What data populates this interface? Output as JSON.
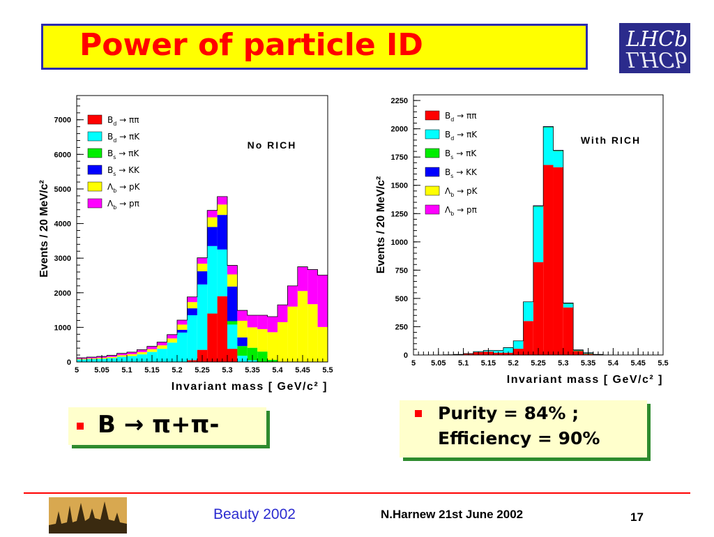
{
  "slide": {
    "title": "Power of particle ID",
    "logo_text": "LHCb",
    "box_left": {
      "text_left": "B ",
      "arrow": "→",
      "text_right": " π+π-"
    },
    "box_right": {
      "line1": "Purity = 84% ;",
      "line2": "Efficiency = 90%"
    },
    "footer": {
      "event": "Beauty 2002",
      "author_date": "N.Harnew  21st June 2002",
      "page": "17"
    }
  },
  "colors": {
    "title_bg": "#ffff00",
    "title_border": "#2b2bb0",
    "title_text": "#ff0000",
    "box_bg": "#ffffcc",
    "box_shadow": "#2e8b2e",
    "bullet": "#ff0000",
    "footer_line": "#ff0000",
    "footer_event": "#2b2bd0"
  },
  "chart_data": [
    {
      "type": "bar",
      "stacked": true,
      "annotation": "No RICH",
      "xlabel": "Invariant mass  [ GeV/c² ]",
      "ylabel": "Events / 20 MeV/c²",
      "xlim": [
        5,
        5.5
      ],
      "ylim": [
        0,
        7700
      ],
      "xticks": [
        "5",
        "5.05",
        "5.1",
        "5.15",
        "5.2",
        "5.25",
        "5.3",
        "5.35",
        "5.4",
        "5.45",
        "5.5"
      ],
      "yticks": [
        0,
        1000,
        2000,
        3000,
        4000,
        5000,
        6000,
        7000
      ],
      "legend_position": "top-left",
      "bin_width": 0.02,
      "bin_starts": [
        5.0,
        5.02,
        5.04,
        5.06,
        5.08,
        5.1,
        5.12,
        5.14,
        5.16,
        5.18,
        5.2,
        5.22,
        5.24,
        5.26,
        5.28,
        5.3,
        5.32,
        5.34,
        5.36,
        5.38,
        5.4,
        5.42,
        5.44,
        5.46,
        5.48
      ],
      "series": [
        {
          "name": "Bd → ππ",
          "color": "#ff0000",
          "values": [
            0,
            0,
            0,
            0,
            0,
            0,
            0,
            0,
            0,
            0,
            0,
            50,
            350,
            1400,
            1900,
            380,
            0,
            0,
            0,
            0,
            0,
            0,
            0,
            0,
            0
          ]
        },
        {
          "name": "Bd → πK",
          "color": "#00ffff",
          "values": [
            70,
            80,
            90,
            110,
            150,
            170,
            220,
            290,
            380,
            560,
            850,
            1300,
            1890,
            1950,
            1350,
            700,
            180,
            50,
            0,
            0,
            0,
            0,
            0,
            0,
            0
          ]
        },
        {
          "name": "Bs → πK",
          "color": "#00ee00",
          "values": [
            0,
            0,
            0,
            0,
            0,
            0,
            0,
            0,
            0,
            0,
            0,
            0,
            0,
            0,
            0,
            100,
            280,
            360,
            300,
            60,
            0,
            0,
            0,
            0,
            0
          ]
        },
        {
          "name": "Bs → KK",
          "color": "#0000ff",
          "values": [
            0,
            0,
            0,
            0,
            0,
            0,
            0,
            0,
            0,
            0,
            80,
            200,
            380,
            550,
            1000,
            1000,
            250,
            0,
            0,
            0,
            0,
            0,
            0,
            0,
            0
          ]
        },
        {
          "name": "Λb → pK",
          "color": "#ffff00",
          "values": [
            20,
            25,
            30,
            35,
            45,
            55,
            65,
            80,
            100,
            120,
            150,
            180,
            220,
            280,
            300,
            350,
            480,
            590,
            650,
            800,
            1150,
            1600,
            2050,
            1670,
            1010
          ]
        },
        {
          "name": "Λb → pπ",
          "color": "#ff00ff",
          "values": [
            30,
            35,
            40,
            45,
            55,
            60,
            70,
            80,
            95,
            110,
            130,
            150,
            170,
            200,
            230,
            260,
            300,
            350,
            400,
            450,
            500,
            600,
            700,
            1000,
            1500
          ]
        }
      ]
    },
    {
      "type": "bar",
      "stacked": true,
      "annotation": "With RICH",
      "xlabel": "Invariant mass  [ GeV/c² ]",
      "ylabel": "Events / 20 MeV/c²",
      "xlim": [
        5,
        5.5
      ],
      "ylim": [
        0,
        2300
      ],
      "xticks": [
        "5",
        "5.05",
        "5.1",
        "5.15",
        "5.2",
        "5.25",
        "5.3",
        "5.35",
        "5.4",
        "5.45",
        "5.5"
      ],
      "yticks": [
        0,
        250,
        500,
        750,
        1000,
        1250,
        1500,
        1750,
        2000,
        2250
      ],
      "legend_position": "top-left",
      "bin_width": 0.02,
      "bin_starts": [
        5.0,
        5.02,
        5.04,
        5.06,
        5.08,
        5.1,
        5.12,
        5.14,
        5.16,
        5.18,
        5.2,
        5.22,
        5.24,
        5.26,
        5.28,
        5.3,
        5.32,
        5.34,
        5.36,
        5.38,
        5.4,
        5.42,
        5.44,
        5.46,
        5.48
      ],
      "series": [
        {
          "name": "Bd → ππ",
          "color": "#ff0000",
          "values": [
            0,
            0,
            0,
            2,
            5,
            12,
            25,
            30,
            20,
            20,
            55,
            300,
            820,
            1680,
            1660,
            420,
            35,
            10,
            5,
            0,
            0,
            0,
            0,
            0,
            0
          ]
        },
        {
          "name": "Bd → πK",
          "color": "#00ffff",
          "values": [
            0,
            0,
            0,
            0,
            0,
            0,
            5,
            10,
            20,
            45,
            70,
            170,
            490,
            330,
            140,
            30,
            0,
            0,
            0,
            0,
            0,
            0,
            0,
            0,
            0
          ]
        },
        {
          "name": "Bs → πK",
          "color": "#00ee00",
          "values": [
            0,
            0,
            0,
            0,
            0,
            0,
            0,
            0,
            0,
            0,
            0,
            0,
            5,
            5,
            5,
            5,
            5,
            5,
            0,
            0,
            0,
            0,
            0,
            0,
            0
          ]
        },
        {
          "name": "Bs → KK",
          "color": "#0000ff",
          "values": [
            0,
            0,
            0,
            0,
            0,
            0,
            0,
            0,
            0,
            0,
            0,
            0,
            5,
            5,
            5,
            5,
            5,
            5,
            0,
            0,
            0,
            0,
            0,
            0,
            0
          ]
        },
        {
          "name": "Λb → pK",
          "color": "#ffff00",
          "values": [
            0,
            0,
            0,
            0,
            0,
            0,
            0,
            0,
            0,
            0,
            0,
            0,
            0,
            0,
            0,
            0,
            0,
            0,
            0,
            0,
            0,
            0,
            0,
            0,
            0
          ]
        },
        {
          "name": "Λb → pπ",
          "color": "#ff00ff",
          "values": [
            0,
            0,
            0,
            0,
            0,
            0,
            0,
            0,
            0,
            0,
            0,
            0,
            0,
            0,
            0,
            0,
            0,
            0,
            0,
            0,
            0,
            0,
            0,
            0,
            0
          ]
        }
      ]
    }
  ]
}
